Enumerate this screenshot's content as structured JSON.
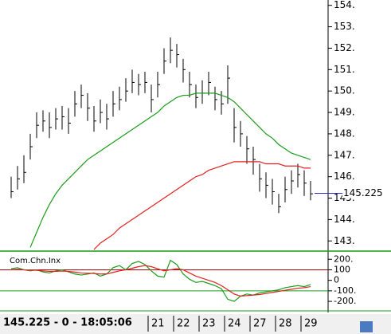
{
  "chart_data": [
    {
      "type": "ohlc",
      "categories": [
        null,
        null,
        null,
        null,
        null,
        null,
        null,
        null,
        null,
        null,
        null,
        null,
        null,
        null,
        null,
        null,
        null,
        null,
        null,
        null,
        null,
        null,
        "21",
        null,
        null,
        null,
        "22",
        null,
        null,
        null,
        "23",
        null,
        null,
        null,
        "24",
        null,
        null,
        null,
        "27",
        null,
        null,
        null,
        "28",
        null,
        null,
        null,
        "29",
        null
      ],
      "high": [
        146.0,
        146.5,
        147.0,
        148.0,
        149.0,
        149.1,
        149.0,
        149.2,
        149.3,
        149.2,
        150.0,
        150.3,
        149.9,
        149.3,
        149.6,
        149.4,
        150.0,
        150.2,
        150.6,
        151.0,
        150.8,
        150.9,
        150.3,
        150.9,
        152.0,
        152.5,
        152.2,
        151.5,
        150.9,
        150.3,
        150.5,
        150.9,
        150.2,
        150.0,
        151.2,
        149.2,
        148.6,
        147.9,
        147.4,
        146.6,
        146.2,
        145.9,
        145.2,
        146.0,
        146.3,
        146.6,
        146.3,
        145.8
      ],
      "low": [
        145.0,
        145.4,
        145.7,
        146.8,
        147.8,
        148.1,
        147.8,
        148.2,
        148.2,
        148.0,
        148.8,
        149.2,
        148.6,
        148.1,
        148.5,
        148.2,
        148.8,
        149.1,
        149.5,
        149.9,
        149.8,
        149.9,
        149.0,
        149.7,
        150.8,
        151.3,
        151.1,
        150.4,
        149.7,
        149.2,
        149.4,
        149.8,
        149.1,
        148.9,
        149.4,
        147.6,
        147.4,
        146.6,
        146.1,
        145.3,
        145.0,
        144.7,
        144.3,
        144.8,
        145.2,
        145.5,
        145.1,
        144.9
      ],
      "close": [
        145.3,
        145.9,
        146.2,
        147.4,
        148.4,
        148.6,
        148.3,
        148.7,
        148.8,
        148.5,
        149.4,
        149.8,
        149.2,
        148.6,
        149.0,
        148.7,
        149.4,
        149.6,
        150.0,
        150.4,
        150.3,
        150.4,
        149.6,
        150.3,
        151.4,
        151.9,
        151.7,
        151.0,
        150.3,
        149.7,
        149.9,
        150.4,
        149.6,
        149.4,
        150.6,
        148.3,
        148.0,
        147.3,
        146.8,
        145.9,
        145.6,
        145.3,
        144.6,
        145.4,
        145.8,
        146.1,
        145.7,
        145.2
      ],
      "bar_color": "#000000",
      "series": [
        {
          "color": "#1a9c1a",
          "values": [
            null,
            null,
            null,
            142.7,
            143.4,
            144.1,
            144.7,
            145.2,
            145.6,
            145.9,
            146.2,
            146.5,
            146.8,
            147.0,
            147.2,
            147.4,
            147.6,
            147.8,
            148.0,
            148.2,
            148.4,
            148.6,
            148.8,
            149.0,
            149.3,
            149.5,
            149.7,
            149.8,
            149.8,
            149.9,
            149.9,
            149.9,
            149.9,
            149.8,
            149.7,
            149.5,
            149.2,
            148.9,
            148.6,
            148.3,
            148.0,
            147.8,
            147.5,
            147.3,
            147.1,
            147.0,
            146.9,
            146.8
          ]
        },
        {
          "color": "#e02020",
          "values": [
            null,
            null,
            null,
            null,
            null,
            null,
            null,
            null,
            null,
            null,
            null,
            null,
            null,
            142.6,
            142.9,
            143.1,
            143.3,
            143.6,
            143.8,
            144.0,
            144.2,
            144.4,
            144.6,
            144.8,
            145.0,
            145.2,
            145.4,
            145.6,
            145.8,
            146.0,
            146.1,
            146.3,
            146.4,
            146.5,
            146.6,
            146.7,
            146.7,
            146.7,
            146.7,
            146.7,
            146.6,
            146.6,
            146.6,
            146.5,
            146.5,
            146.5,
            146.4,
            146.4
          ]
        }
      ],
      "ylim": [
        142.6,
        154.25
      ],
      "yticks": [
        {
          "value": 143,
          "label": "143."
        },
        {
          "value": 144,
          "label": "144."
        },
        {
          "value": 145,
          "label": "145."
        },
        {
          "value": 146,
          "label": "146."
        },
        {
          "value": 147,
          "label": "147."
        },
        {
          "value": 148,
          "label": "148."
        },
        {
          "value": 149,
          "label": "149."
        },
        {
          "value": 150,
          "label": "150."
        },
        {
          "value": 151,
          "label": "151."
        },
        {
          "value": 152,
          "label": "152."
        },
        {
          "value": 153,
          "label": "153."
        },
        {
          "value": 154,
          "label": "154."
        }
      ],
      "last_price": 145.225,
      "last_price_color": "#3030c0"
    },
    {
      "type": "line",
      "title": "Com.Chn.Inx",
      "series": [
        {
          "color": "#1a9c1a",
          "values": [
            110,
            120,
            100,
            90,
            100,
            80,
            70,
            90,
            100,
            80,
            60,
            50,
            60,
            70,
            40,
            60,
            120,
            140,
            100,
            160,
            180,
            150,
            90,
            40,
            30,
            190,
            150,
            60,
            10,
            -20,
            -10,
            -30,
            -50,
            -80,
            -180,
            -200,
            -150,
            -130,
            -140,
            -120,
            -110,
            -100,
            -90,
            -70,
            -60,
            -50,
            -60,
            -40
          ]
        },
        {
          "color": "#e02020",
          "values": [
            100,
            105,
            100,
            98,
            95,
            90,
            85,
            85,
            88,
            85,
            78,
            70,
            68,
            65,
            60,
            62,
            75,
            90,
            100,
            115,
            130,
            140,
            130,
            110,
            90,
            100,
            110,
            100,
            70,
            40,
            20,
            0,
            -20,
            -50,
            -90,
            -130,
            -150,
            -145,
            -140,
            -135,
            -125,
            -115,
            -105,
            -95,
            -85,
            -75,
            -70,
            -60
          ]
        }
      ],
      "ylim": [
        -260,
        255
      ],
      "yticks": [
        {
          "value": 200,
          "label": "200."
        },
        100,
        0,
        {
          "value": -100,
          "label": "-100."
        },
        {
          "value": -200,
          "label": "-200."
        }
      ],
      "hlines": [
        100,
        -100
      ],
      "hline_colors": [
        "#b00000",
        "#1a9c1a"
      ]
    }
  ],
  "status": "145.225 - 0 - 18:05:06"
}
